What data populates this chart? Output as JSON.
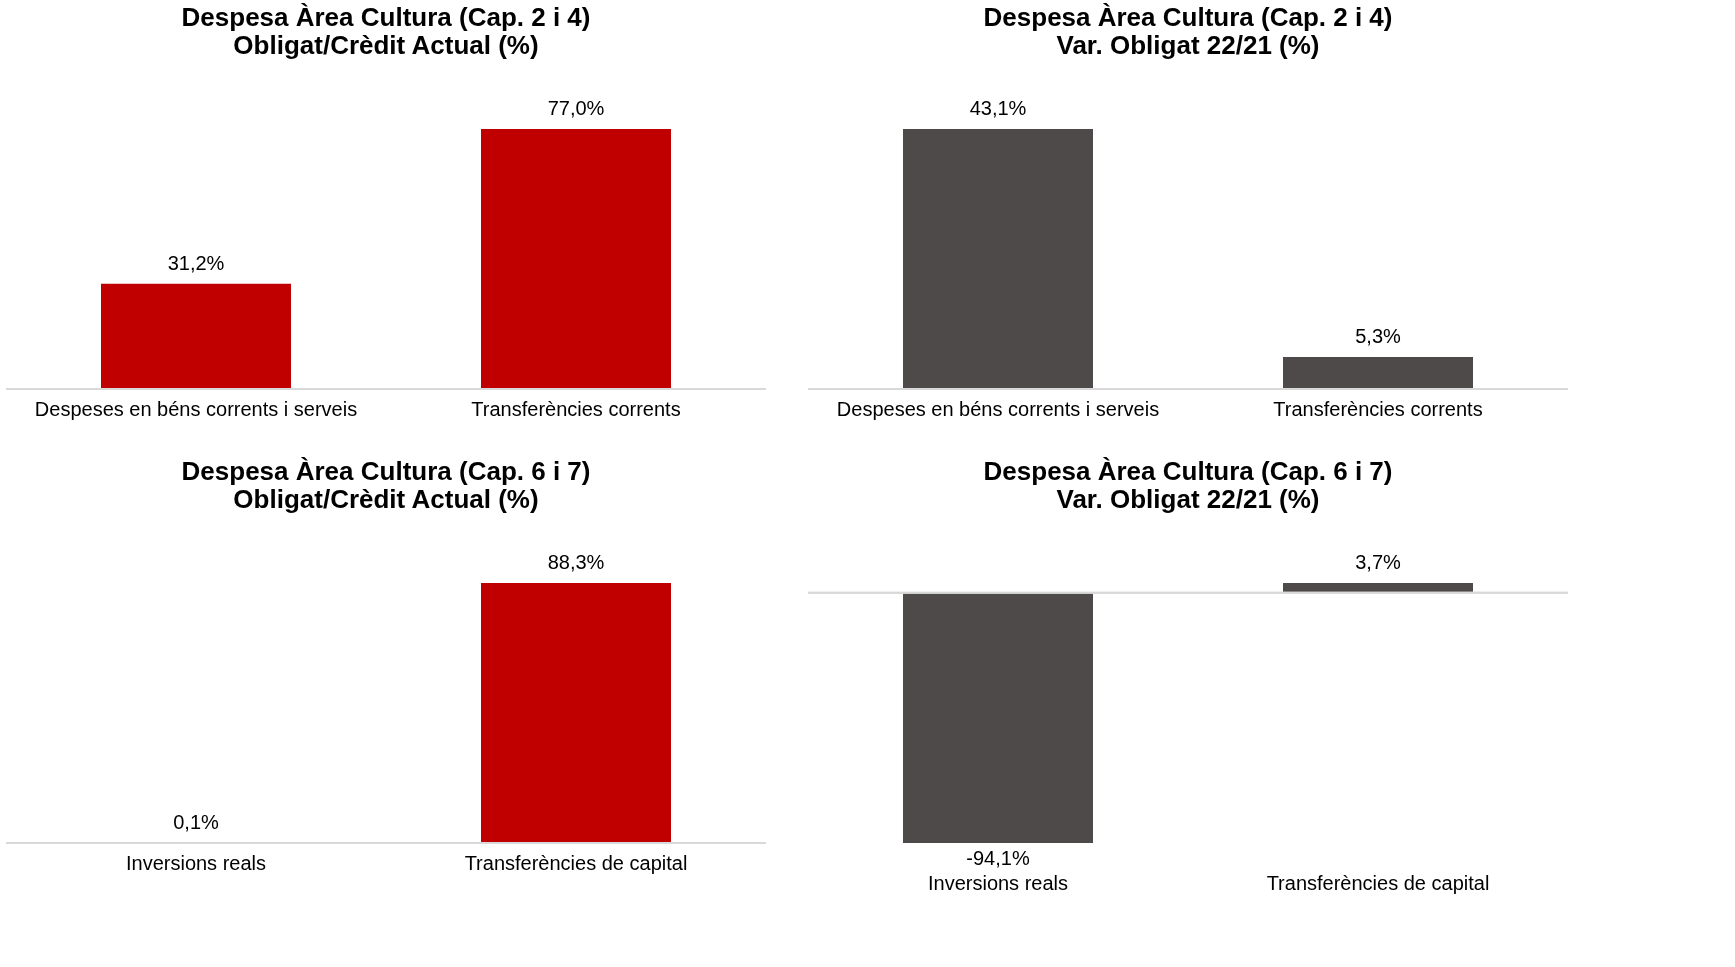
{
  "chart_data": [
    {
      "type": "bar",
      "title": "Despesa Àrea Cultura (Cap. 2 i 4)\nObligat/Crèdit Actual (%)",
      "categories": [
        "Despeses en béns corrents i serveis",
        "Transferències corrents"
      ],
      "values": [
        31.2,
        77.0
      ],
      "value_labels": [
        "31,2%",
        "77,0%"
      ],
      "color": "#c00000",
      "tick_labels": "x"
    },
    {
      "type": "bar",
      "title": "Despesa Àrea Cultura (Cap. 2 i 4)\nVar. Obligat 22/21 (%)",
      "categories": [
        "Despeses en béns corrents i serveis",
        "Transferències corrents"
      ],
      "values": [
        43.1,
        5.3
      ],
      "value_labels": [
        "43,1%",
        "5,3%"
      ],
      "color": "#4e4a4a",
      "tick_labels": "x"
    },
    {
      "type": "bar",
      "title": "Despesa Àrea Cultura (Cap. 6 i 7)\nObligat/Crèdit Actual (%)",
      "categories": [
        "Inversions reals",
        "Transferències de capital"
      ],
      "values": [
        0.1,
        88.3
      ],
      "value_labels": [
        "0,1%",
        "88,3%"
      ],
      "color": "#c00000",
      "tick_labels": "x"
    },
    {
      "type": "bar",
      "title": "Despesa Àrea Cultura (Cap. 6 i 7)\nVar. Obligat 22/21 (%)",
      "categories": [
        "Inversions reals",
        "Transferències de capital"
      ],
      "values": [
        -94.1,
        3.7
      ],
      "value_labels": [
        "-94,1%",
        "3,7%"
      ],
      "color": "#4e4a4a",
      "tick_labels": "x"
    }
  ]
}
